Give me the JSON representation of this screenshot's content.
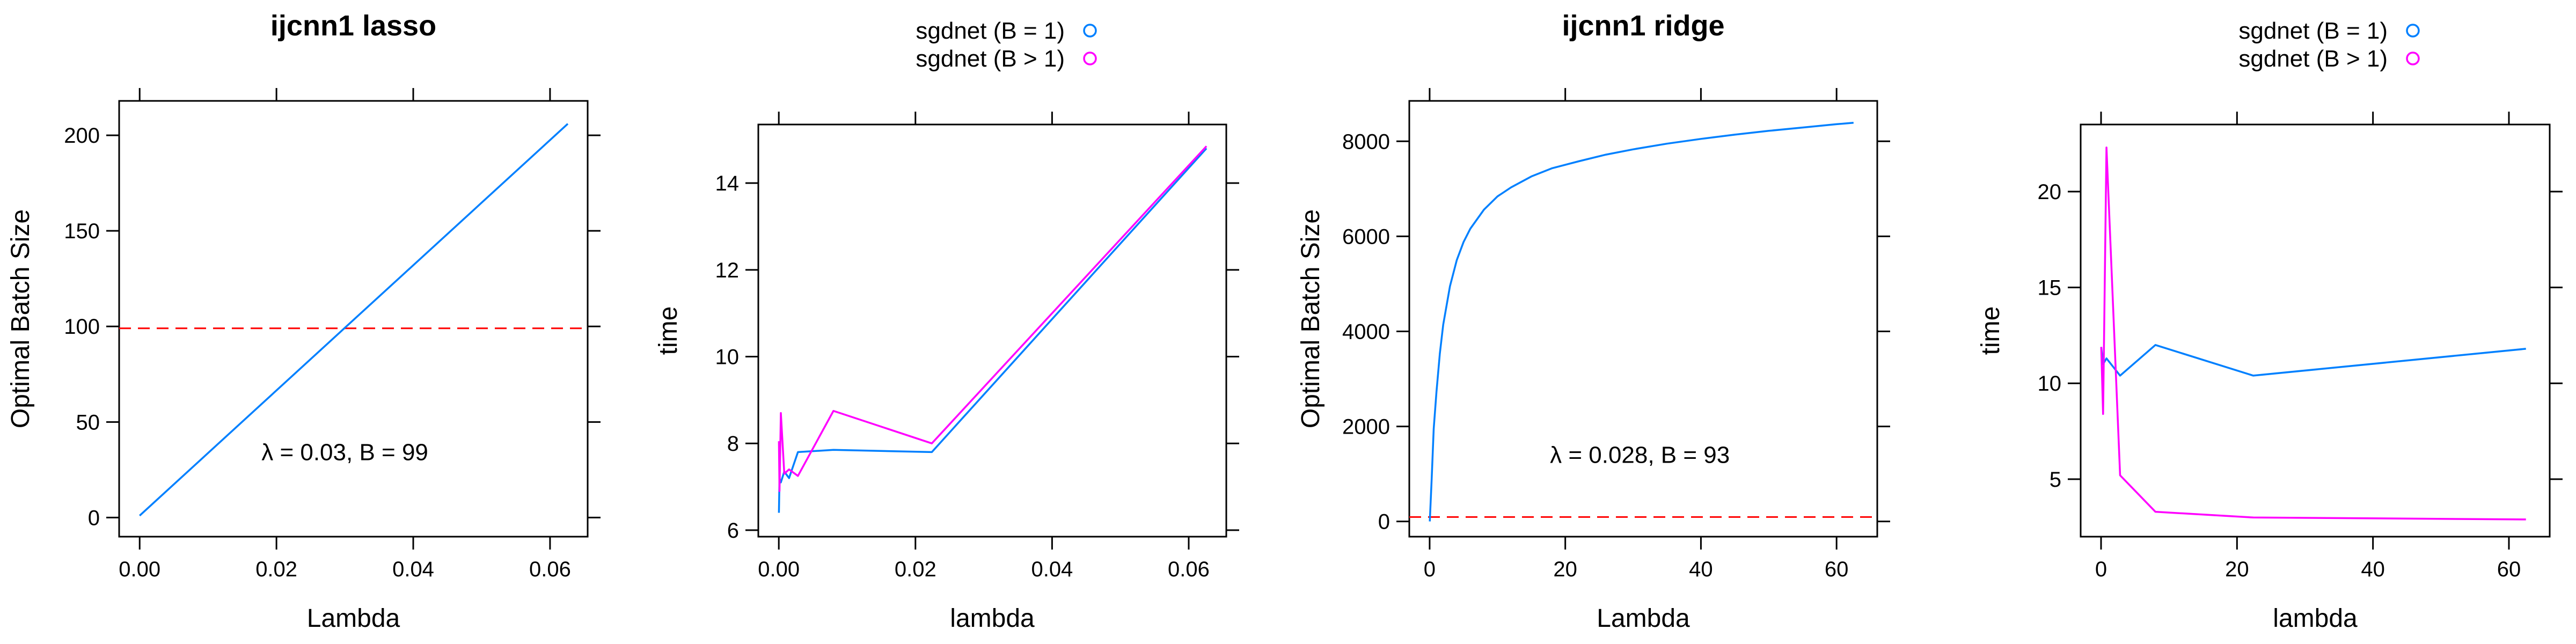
{
  "chart_data": [
    {
      "type": "line",
      "title": "ijcnn1 lasso",
      "xlabel": "Lambda",
      "ylabel": "Optimal Batch Size",
      "xlim": [
        -0.003,
        0.0655
      ],
      "ylim": [
        -10,
        218
      ],
      "xticks": [
        0.0,
        0.02,
        0.04,
        0.06
      ],
      "xtick_labels": [
        "0.00",
        "0.02",
        "0.04",
        "0.06"
      ],
      "yticks": [
        0,
        50,
        100,
        150,
        200
      ],
      "ytick_labels": [
        "0",
        "50",
        "100",
        "150",
        "200"
      ],
      "series": [
        {
          "color": "#0080ff",
          "x": [
            0.0,
            0.0626
          ],
          "y": [
            1,
            206
          ]
        }
      ],
      "hline": {
        "y": 99,
        "color": "#ff0000",
        "style": "dashed"
      },
      "annotation": {
        "text": "λ = 0.03, B = 99",
        "x": 0.03,
        "y": 30
      }
    },
    {
      "type": "line",
      "title": "",
      "xlabel": "lambda",
      "ylabel": "time",
      "xlim": [
        -0.003,
        0.0655
      ],
      "ylim": [
        5.85,
        15.35
      ],
      "xticks": [
        0.0,
        0.02,
        0.04,
        0.06
      ],
      "xtick_labels": [
        "0.00",
        "0.02",
        "0.04",
        "0.06"
      ],
      "yticks": [
        6,
        8,
        10,
        12,
        14
      ],
      "ytick_labels": [
        "6",
        "8",
        "10",
        "12",
        "14"
      ],
      "legend": {
        "position": "top",
        "entries": [
          {
            "label": "sgdnet (B = 1)",
            "color": "#0080ff"
          },
          {
            "label": "sgdnet (B > 1)",
            "color": "#ff00ff"
          }
        ]
      },
      "series": [
        {
          "name": "sgdnet (B = 1)",
          "color": "#0080ff",
          "x": [
            2e-05,
            0.0001,
            0.0003,
            0.0008,
            0.0015,
            0.0028,
            0.008,
            0.0224,
            0.0626
          ],
          "y": [
            6.4,
            7.2,
            7.1,
            7.35,
            7.2,
            7.8,
            7.85,
            7.8,
            14.8
          ]
        },
        {
          "name": "sgdnet (B > 1)",
          "color": "#ff00ff",
          "x": [
            2e-05,
            0.0001,
            0.0003,
            0.0008,
            0.0015,
            0.0028,
            0.008,
            0.0224,
            0.0626
          ],
          "y": [
            8.05,
            6.9,
            8.7,
            7.3,
            7.4,
            7.25,
            8.75,
            8.0,
            14.85
          ]
        }
      ]
    },
    {
      "type": "line",
      "title": "ijcnn1 ridge",
      "xlabel": "Lambda",
      "ylabel": "Optimal Batch Size",
      "xlim": [
        -3,
        66
      ],
      "ylim": [
        -320,
        8850
      ],
      "xticks": [
        0,
        20,
        40,
        60
      ],
      "xtick_labels": [
        "0",
        "20",
        "40",
        "60"
      ],
      "yticks": [
        0,
        2000,
        4000,
        6000,
        8000
      ],
      "ytick_labels": [
        "0",
        "2000",
        "4000",
        "6000",
        "8000"
      ],
      "series": [
        {
          "color": "#0080ff",
          "x": [
            0.02,
            0.3,
            0.6,
            1,
            1.5,
            2,
            3,
            4,
            5,
            6,
            8,
            10,
            12,
            15,
            18,
            22,
            26,
            30,
            35,
            40,
            45,
            50,
            55,
            60,
            62.5
          ],
          "y": [
            1,
            890,
            1950,
            2720,
            3530,
            4140,
            4950,
            5500,
            5880,
            6160,
            6560,
            6840,
            7030,
            7260,
            7430,
            7580,
            7720,
            7830,
            7950,
            8050,
            8140,
            8220,
            8290,
            8360,
            8390
          ]
        }
      ],
      "hline": {
        "y": 93,
        "color": "#ff0000",
        "style": "dashed"
      },
      "annotation": {
        "text": "λ = 0.028, B = 93",
        "x": 31,
        "y": 1230
      }
    },
    {
      "type": "line",
      "title": "",
      "xlabel": "lambda",
      "ylabel": "time",
      "xlim": [
        -3,
        66
      ],
      "ylim": [
        2.0,
        23.5
      ],
      "xticks": [
        0,
        20,
        40,
        60
      ],
      "xtick_labels": [
        "0",
        "20",
        "40",
        "60"
      ],
      "yticks": [
        5,
        10,
        15,
        20
      ],
      "ytick_labels": [
        "5",
        "10",
        "15",
        "20"
      ],
      "legend": {
        "position": "top",
        "entries": [
          {
            "label": "sgdnet (B = 1)",
            "color": "#0080ff"
          },
          {
            "label": "sgdnet (B > 1)",
            "color": "#ff00ff"
          }
        ]
      },
      "series": [
        {
          "name": "sgdnet (B = 1)",
          "color": "#0080ff",
          "x": [
            0.02,
            0.3,
            0.8,
            2.8,
            8,
            22.4,
            62.5
          ],
          "y": [
            11.9,
            11.0,
            11.3,
            10.4,
            12.0,
            10.4,
            11.8
          ]
        },
        {
          "name": "sgdnet (B > 1)",
          "color": "#ff00ff",
          "x": [
            0.02,
            0.3,
            0.8,
            2.8,
            8,
            22.4,
            62.5
          ],
          "y": [
            11.9,
            8.4,
            22.3,
            5.2,
            3.3,
            3.0,
            2.9
          ]
        }
      ]
    }
  ]
}
